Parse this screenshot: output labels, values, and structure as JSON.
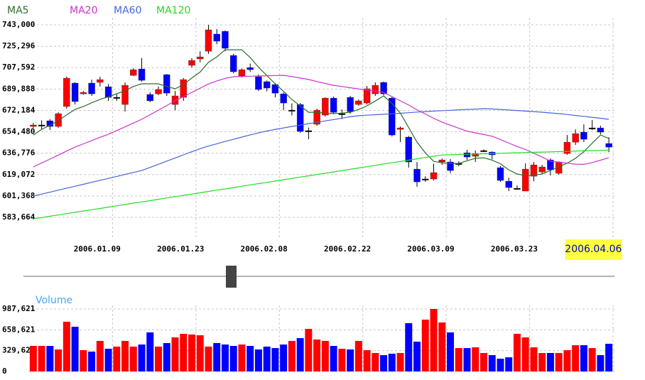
{
  "chart_data": [
    {
      "type": "candlestick",
      "categories": [
        null,
        null,
        null,
        null,
        null,
        null,
        null,
        null,
        "2006.01.09",
        null,
        null,
        null,
        null,
        null,
        null,
        null,
        null,
        null,
        "2006.01.23",
        null,
        null,
        null,
        null,
        null,
        null,
        null,
        null,
        null,
        "2006.02.08",
        null,
        null,
        null,
        null,
        null,
        null,
        null,
        null,
        null,
        "2006.02.22",
        null,
        null,
        null,
        null,
        null,
        null,
        null,
        null,
        null,
        "2006.03.09",
        null,
        null,
        null,
        null,
        null,
        null,
        null,
        null,
        null,
        "2006.03.23",
        null,
        null,
        null,
        null,
        null,
        null,
        null,
        null,
        null,
        "2006.04.06",
        null
      ],
      "open": [
        658900,
        660100,
        663600,
        658900,
        675400,
        694800,
        685900,
        694800,
        695400,
        691800,
        683000,
        677100,
        701200,
        706500,
        685400,
        685900,
        701800,
        677100,
        683000,
        709500,
        714800,
        721200,
        735400,
        737700,
        717700,
        700600,
        707700,
        700100,
        696000,
        693600,
        685900,
        672400,
        677100,
        655400,
        660700,
        668300,
        682400,
        669500,
        683000,
        677100,
        678300,
        685900,
        695400,
        682400,
        656500,
        650100,
        623600,
        615400,
        615400,
        629500,
        629500,
        628300,
        637100,
        634200,
        638900,
        637700,
        624800,
        613600,
        607700,
        605400,
        617700,
        621200,
        631200,
        620100,
        636500,
        645900,
        654200,
        657700,
        657700,
        644800
      ],
      "high": [
        661800,
        664000,
        665000,
        670600,
        700100,
        695400,
        688300,
        697700,
        700000,
        694000,
        685400,
        695400,
        707100,
        715500,
        687100,
        692000,
        702400,
        688300,
        699000,
        715500,
        721200,
        743000,
        739500,
        738300,
        719000,
        707000,
        711000,
        702000,
        697000,
        694800,
        687000,
        678000,
        678300,
        658000,
        673600,
        683000,
        683600,
        673000,
        684200,
        681200,
        692400,
        695400,
        696000,
        683600,
        658900,
        651000,
        629500,
        617700,
        628000,
        632400,
        632000,
        630000,
        639500,
        639000,
        640000,
        638300,
        626000,
        616500,
        610000,
        628300,
        629500,
        627100,
        632400,
        630000,
        651800,
        656500,
        660700,
        664200,
        659500,
        650000
      ],
      "low": [
        657700,
        656500,
        656000,
        657700,
        673600,
        677100,
        685400,
        684200,
        692000,
        680100,
        680100,
        671200,
        700600,
        696000,
        679000,
        684800,
        684200,
        672400,
        680100,
        707700,
        712000,
        719000,
        727000,
        721200,
        703000,
        699500,
        704000,
        688300,
        688000,
        683000,
        672400,
        668000,
        653600,
        648300,
        659500,
        667000,
        669500,
        665000,
        669500,
        676000,
        677100,
        684200,
        684800,
        650600,
        646000,
        624800,
        609000,
        613000,
        614200,
        627100,
        620100,
        626000,
        631200,
        629500,
        637700,
        631800,
        613000,
        605400,
        606500,
        605400,
        613600,
        619500,
        618300,
        618900,
        635400,
        643600,
        646000,
        656000,
        652400,
        637700
      ],
      "close": [
        660100,
        660100,
        658900,
        669500,
        698900,
        679500,
        687100,
        685900,
        697700,
        683000,
        683000,
        693000,
        705900,
        697100,
        680100,
        689500,
        686500,
        684200,
        697700,
        713600,
        716500,
        738900,
        729500,
        723600,
        704200,
        705900,
        705900,
        689500,
        690700,
        686500,
        678300,
        672400,
        654800,
        655400,
        672400,
        682400,
        670600,
        669500,
        671200,
        680100,
        690100,
        693000,
        685900,
        651800,
        657700,
        629500,
        613000,
        615400,
        620700,
        631200,
        622400,
        628300,
        633600,
        636500,
        638900,
        635400,
        614200,
        608300,
        607700,
        623600,
        627100,
        625400,
        623000,
        629500,
        645900,
        653000,
        648300,
        657700,
        654200,
        641800
      ],
      "up_color": "#ff0000",
      "down_color": "#0000ff",
      "series": [
        {
          "name": "MA5",
          "color": "#2e6b2e",
          "values": [
            651800,
            656500,
            660000,
            663600,
            668500,
            673000,
            675400,
            678500,
            681200,
            683500,
            686000,
            688500,
            692000,
            694200,
            694200,
            694200,
            692000,
            690100,
            693500,
            699000,
            704000,
            712000,
            716500,
            722400,
            722400,
            722400,
            716000,
            708000,
            701000,
            694200,
            688000,
            681200,
            676000,
            670600,
            670600,
            669800,
            669500,
            670000,
            670600,
            673000,
            676000,
            680000,
            684200,
            678000,
            670000,
            658000,
            646000,
            637000,
            630000,
            628800,
            628300,
            628300,
            630500,
            632500,
            633000,
            631000,
            628000,
            623000,
            619500,
            618300,
            618500,
            619500,
            622500,
            625400,
            628500,
            632500,
            638000,
            645000,
            651800,
            648900
          ]
        },
        {
          "name": "MA20",
          "color": "#cc33cc",
          "values": [
            625400,
            628700,
            631900,
            635200,
            638500,
            641800,
            644500,
            647200,
            649900,
            652400,
            655500,
            658600,
            661700,
            664800,
            668600,
            672400,
            676300,
            680100,
            683600,
            687100,
            690600,
            694100,
            696600,
            698700,
            700100,
            700300,
            700500,
            700700,
            700900,
            701100,
            701200,
            700200,
            699000,
            697800,
            696100,
            694500,
            693000,
            692000,
            691000,
            690000,
            689100,
            688100,
            687100,
            683600,
            680100,
            676600,
            672700,
            669200,
            665700,
            662500,
            660000,
            657400,
            655000,
            653600,
            652200,
            650800,
            648100,
            645100,
            642300,
            639800,
            636700,
            633600,
            630100,
            629300,
            628500,
            627700,
            627500,
            629000,
            631000,
            633000
          ]
        },
        {
          "name": "MA60",
          "color": "#4466dd",
          "values": [
            601300,
            602900,
            604500,
            606200,
            607800,
            609400,
            611000,
            612700,
            614300,
            615900,
            617500,
            619200,
            620800,
            622400,
            625000,
            627600,
            630200,
            632800,
            635400,
            638000,
            640500,
            642700,
            644600,
            646500,
            648300,
            650100,
            651900,
            653600,
            655100,
            656500,
            657700,
            658900,
            660000,
            661200,
            662300,
            663500,
            664600,
            665800,
            666900,
            667800,
            668200,
            668600,
            669000,
            669400,
            669800,
            670300,
            670800,
            671200,
            671600,
            672000,
            672300,
            672700,
            673000,
            673300,
            673600,
            673400,
            673000,
            672500,
            672100,
            671600,
            671200,
            670700,
            670100,
            669500,
            668800,
            668000,
            667300,
            666500,
            665700,
            664800
          ]
        },
        {
          "name": "MA120",
          "color": "#22dd22",
          "values": [
            582400,
            583500,
            584600,
            585600,
            586700,
            587800,
            588900,
            590000,
            591000,
            592100,
            593200,
            594300,
            595400,
            596400,
            597500,
            598600,
            599700,
            600800,
            601800,
            602900,
            604000,
            605100,
            606200,
            607200,
            608300,
            609400,
            610500,
            611600,
            612600,
            613700,
            614800,
            615900,
            617000,
            618000,
            619100,
            620200,
            621300,
            622400,
            623400,
            624500,
            625600,
            626700,
            627800,
            628800,
            629900,
            631000,
            632100,
            633200,
            634200,
            635300,
            635500,
            635700,
            635900,
            636100,
            636300,
            636500,
            636700,
            636900,
            637100,
            637300,
            637500,
            637700,
            637900,
            638100,
            638300,
            638500,
            638700,
            638900,
            639100,
            639300
          ]
        }
      ],
      "ylim": [
        566600,
        748900
      ],
      "yticks": [
        {
          "value": 743000,
          "label": "743,000"
        },
        {
          "value": 725296,
          "label": "725,296"
        },
        {
          "value": 707592,
          "label": "707,592"
        },
        {
          "value": 689888,
          "label": "689,888"
        },
        {
          "value": 672184,
          "label": "672,184"
        },
        {
          "value": 654480,
          "label": "654,480"
        },
        {
          "value": 636776,
          "label": "636,776"
        },
        {
          "value": 619072,
          "label": "619,072"
        },
        {
          "value": 601368,
          "label": "601,368"
        },
        {
          "value": 583664,
          "label": "583,664"
        }
      ],
      "grid": true
    },
    {
      "type": "bar",
      "title": "Volume",
      "values": [
        404000,
        404000,
        404000,
        348000,
        786000,
        707000,
        337000,
        314000,
        483000,
        359000,
        393000,
        483000,
        393000,
        426000,
        617000,
        393000,
        449000,
        539000,
        595000,
        584000,
        572000,
        393000,
        449000,
        426000,
        404000,
        426000,
        404000,
        348000,
        393000,
        370000,
        426000,
        483000,
        527000,
        673000,
        505000,
        483000,
        404000,
        359000,
        348000,
        483000,
        337000,
        292000,
        258000,
        281000,
        292000,
        763000,
        471000,
        819000,
        987621,
        774000,
        617000,
        370000,
        370000,
        382000,
        292000,
        258000,
        202000,
        224000,
        595000,
        539000,
        382000,
        292000,
        292000,
        292000,
        337000,
        415000,
        415000,
        370000,
        258000,
        438000
      ],
      "ylim": [
        0,
        1043700
      ],
      "yticks": [
        0,
        {
          "value": 329621,
          "label": "329,621"
        },
        {
          "value": 658621,
          "label": "658,621"
        },
        {
          "value": 987621,
          "label": "987,621"
        }
      ],
      "grid": true
    }
  ]
}
